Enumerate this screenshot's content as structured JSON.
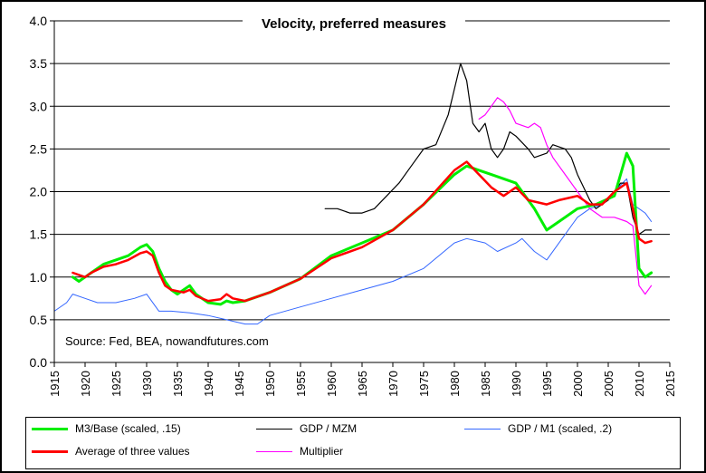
{
  "chart_data": {
    "type": "line",
    "title": "Velocity, preferred measures",
    "annotation": "Source: Fed, BEA, nowandfutures.com",
    "xlim": [
      1915,
      2015
    ],
    "ylim": [
      0,
      4
    ],
    "x_ticks": [
      "1915",
      "1920",
      "1925",
      "1930",
      "1935",
      "1940",
      "1945",
      "1950",
      "1955",
      "1960",
      "1965",
      "1970",
      "1975",
      "1980",
      "1985",
      "1990",
      "1995",
      "2000",
      "2005",
      "2010",
      "2015"
    ],
    "y_ticks": [
      "0.0",
      "0.5",
      "1.0",
      "1.5",
      "2.0",
      "2.5",
      "3.0",
      "3.5",
      "4.0"
    ],
    "grid": "horizontal",
    "legend_position": "bottom",
    "series": [
      {
        "name": "M3/Base (scaled, .15)",
        "color": "#00ee00",
        "width": 3,
        "points": [
          [
            1918,
            1.0
          ],
          [
            1919,
            0.95
          ],
          [
            1920,
            1.0
          ],
          [
            1921,
            1.05
          ],
          [
            1923,
            1.15
          ],
          [
            1925,
            1.2
          ],
          [
            1927,
            1.25
          ],
          [
            1929,
            1.35
          ],
          [
            1930,
            1.38
          ],
          [
            1931,
            1.3
          ],
          [
            1932,
            1.1
          ],
          [
            1933,
            0.95
          ],
          [
            1934,
            0.85
          ],
          [
            1935,
            0.8
          ],
          [
            1936,
            0.85
          ],
          [
            1937,
            0.9
          ],
          [
            1938,
            0.8
          ],
          [
            1940,
            0.7
          ],
          [
            1942,
            0.68
          ],
          [
            1943,
            0.72
          ],
          [
            1944,
            0.7
          ],
          [
            1946,
            0.72
          ],
          [
            1950,
            0.82
          ],
          [
            1955,
            0.98
          ],
          [
            1960,
            1.25
          ],
          [
            1965,
            1.4
          ],
          [
            1970,
            1.55
          ],
          [
            1975,
            1.85
          ],
          [
            1980,
            2.2
          ],
          [
            1982,
            2.3
          ],
          [
            1984,
            2.25
          ],
          [
            1986,
            2.2
          ],
          [
            1990,
            2.1
          ],
          [
            1993,
            1.8
          ],
          [
            1995,
            1.55
          ],
          [
            1997,
            1.65
          ],
          [
            2000,
            1.8
          ],
          [
            2003,
            1.85
          ],
          [
            2006,
            1.95
          ],
          [
            2008,
            2.45
          ],
          [
            2009,
            2.3
          ],
          [
            2010,
            1.1
          ],
          [
            2011,
            1.0
          ],
          [
            2012,
            1.05
          ]
        ]
      },
      {
        "name": "GDP / MZM",
        "color": "#000000",
        "width": 1.2,
        "points": [
          [
            1959,
            1.8
          ],
          [
            1961,
            1.8
          ],
          [
            1963,
            1.75
          ],
          [
            1965,
            1.75
          ],
          [
            1967,
            1.8
          ],
          [
            1969,
            1.95
          ],
          [
            1971,
            2.1
          ],
          [
            1973,
            2.3
          ],
          [
            1975,
            2.5
          ],
          [
            1977,
            2.55
          ],
          [
            1979,
            2.9
          ],
          [
            1980,
            3.2
          ],
          [
            1981,
            3.5
          ],
          [
            1982,
            3.3
          ],
          [
            1983,
            2.8
          ],
          [
            1984,
            2.7
          ],
          [
            1985,
            2.8
          ],
          [
            1986,
            2.5
          ],
          [
            1987,
            2.4
          ],
          [
            1988,
            2.5
          ],
          [
            1989,
            2.7
          ],
          [
            1990,
            2.65
          ],
          [
            1992,
            2.5
          ],
          [
            1993,
            2.4
          ],
          [
            1995,
            2.45
          ],
          [
            1996,
            2.55
          ],
          [
            1998,
            2.5
          ],
          [
            1999,
            2.4
          ],
          [
            2000,
            2.2
          ],
          [
            2002,
            1.9
          ],
          [
            2003,
            1.8
          ],
          [
            2005,
            1.9
          ],
          [
            2007,
            2.1
          ],
          [
            2008,
            2.1
          ],
          [
            2009,
            1.7
          ],
          [
            2010,
            1.5
          ],
          [
            2011,
            1.55
          ],
          [
            2012,
            1.55
          ]
        ]
      },
      {
        "name": "GDP / M1 (scaled, .2)",
        "color": "#3366ff",
        "width": 1,
        "points": [
          [
            1915,
            0.6
          ],
          [
            1917,
            0.7
          ],
          [
            1918,
            0.8
          ],
          [
            1920,
            0.75
          ],
          [
            1922,
            0.7
          ],
          [
            1925,
            0.7
          ],
          [
            1928,
            0.75
          ],
          [
            1930,
            0.8
          ],
          [
            1932,
            0.6
          ],
          [
            1934,
            0.6
          ],
          [
            1937,
            0.58
          ],
          [
            1940,
            0.55
          ],
          [
            1943,
            0.5
          ],
          [
            1946,
            0.45
          ],
          [
            1948,
            0.45
          ],
          [
            1950,
            0.55
          ],
          [
            1955,
            0.65
          ],
          [
            1960,
            0.75
          ],
          [
            1965,
            0.85
          ],
          [
            1970,
            0.95
          ],
          [
            1975,
            1.1
          ],
          [
            1980,
            1.4
          ],
          [
            1982,
            1.45
          ],
          [
            1985,
            1.4
          ],
          [
            1987,
            1.3
          ],
          [
            1990,
            1.4
          ],
          [
            1991,
            1.45
          ],
          [
            1993,
            1.3
          ],
          [
            1995,
            1.2
          ],
          [
            1997,
            1.4
          ],
          [
            2000,
            1.7
          ],
          [
            2002,
            1.8
          ],
          [
            2004,
            1.85
          ],
          [
            2006,
            2.0
          ],
          [
            2008,
            2.15
          ],
          [
            2009,
            1.85
          ],
          [
            2010,
            1.8
          ],
          [
            2011,
            1.75
          ],
          [
            2012,
            1.65
          ]
        ]
      },
      {
        "name": "Average of three values",
        "color": "#ff0000",
        "width": 2.5,
        "points": [
          [
            1918,
            1.05
          ],
          [
            1920,
            1.0
          ],
          [
            1921,
            1.05
          ],
          [
            1923,
            1.12
          ],
          [
            1925,
            1.15
          ],
          [
            1927,
            1.2
          ],
          [
            1929,
            1.28
          ],
          [
            1930,
            1.3
          ],
          [
            1931,
            1.25
          ],
          [
            1932,
            1.05
          ],
          [
            1933,
            0.9
          ],
          [
            1934,
            0.85
          ],
          [
            1936,
            0.82
          ],
          [
            1937,
            0.85
          ],
          [
            1938,
            0.78
          ],
          [
            1940,
            0.72
          ],
          [
            1942,
            0.74
          ],
          [
            1943,
            0.8
          ],
          [
            1944,
            0.75
          ],
          [
            1946,
            0.72
          ],
          [
            1950,
            0.82
          ],
          [
            1955,
            0.98
          ],
          [
            1960,
            1.22
          ],
          [
            1965,
            1.35
          ],
          [
            1970,
            1.55
          ],
          [
            1975,
            1.85
          ],
          [
            1980,
            2.25
          ],
          [
            1982,
            2.35
          ],
          [
            1984,
            2.2
          ],
          [
            1986,
            2.05
          ],
          [
            1988,
            1.95
          ],
          [
            1990,
            2.05
          ],
          [
            1992,
            1.9
          ],
          [
            1995,
            1.85
          ],
          [
            1997,
            1.9
          ],
          [
            2000,
            1.95
          ],
          [
            2002,
            1.85
          ],
          [
            2004,
            1.85
          ],
          [
            2006,
            2.0
          ],
          [
            2008,
            2.1
          ],
          [
            2009,
            1.8
          ],
          [
            2010,
            1.45
          ],
          [
            2011,
            1.4
          ],
          [
            2012,
            1.42
          ]
        ]
      },
      {
        "name": "Multiplier",
        "color": "#ff00ff",
        "width": 1.2,
        "points": [
          [
            1984,
            2.85
          ],
          [
            1985,
            2.9
          ],
          [
            1986,
            3.0
          ],
          [
            1987,
            3.1
          ],
          [
            1988,
            3.05
          ],
          [
            1989,
            2.95
          ],
          [
            1990,
            2.8
          ],
          [
            1992,
            2.75
          ],
          [
            1993,
            2.8
          ],
          [
            1994,
            2.75
          ],
          [
            1995,
            2.55
          ],
          [
            1996,
            2.4
          ],
          [
            1997,
            2.3
          ],
          [
            1998,
            2.2
          ],
          [
            2000,
            2.0
          ],
          [
            2002,
            1.8
          ],
          [
            2004,
            1.7
          ],
          [
            2006,
            1.7
          ],
          [
            2008,
            1.65
          ],
          [
            2009,
            1.6
          ],
          [
            2010,
            0.9
          ],
          [
            2011,
            0.8
          ],
          [
            2012,
            0.9
          ]
        ]
      }
    ]
  }
}
